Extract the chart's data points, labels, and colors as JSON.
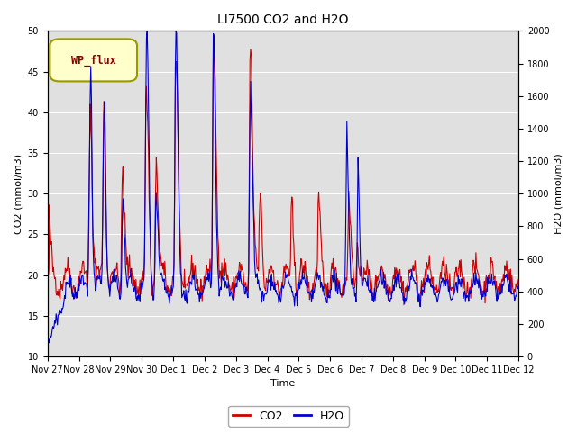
{
  "title": "LI7500 CO2 and H2O",
  "xlabel": "Time",
  "ylabel_left": "CO2 (mmol/m3)",
  "ylabel_right": "H2O (mmol/m3)",
  "ylim_left": [
    10,
    50
  ],
  "ylim_right": [
    0,
    2000
  ],
  "yticks_left": [
    10,
    15,
    20,
    25,
    30,
    35,
    40,
    45,
    50
  ],
  "yticks_right": [
    0,
    200,
    400,
    600,
    800,
    1000,
    1200,
    1400,
    1600,
    1800,
    2000
  ],
  "xtick_labels": [
    "Nov 27",
    "Nov 28",
    "Nov 29",
    "Nov 30",
    "Dec 1",
    "Dec 2",
    "Dec 3",
    "Dec 4",
    "Dec 5",
    "Dec 6",
    "Dec 7",
    "Dec 8",
    "Dec 9",
    "Dec 10",
    "Dec 11",
    "Dec 12"
  ],
  "co2_color": "#cc0000",
  "h2o_color": "#0000cc",
  "bg_color": "#e0e0e0",
  "legend_label": "WP_flux",
  "legend_box_bg": "#ffffcc",
  "legend_box_edge": "#999900",
  "annotation_color": "#880000",
  "line_width": 0.8
}
